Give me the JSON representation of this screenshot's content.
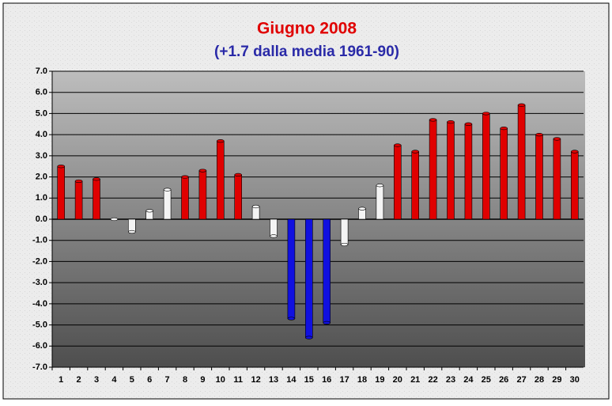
{
  "chart_data": {
    "type": "bar",
    "title": "Giugno 2008",
    "subtitle": "(+1.7 dalla media 1961-90)",
    "categories": [
      "1",
      "2",
      "3",
      "4",
      "5",
      "6",
      "7",
      "8",
      "9",
      "10",
      "11",
      "12",
      "13",
      "14",
      "15",
      "16",
      "17",
      "18",
      "19",
      "20",
      "21",
      "22",
      "23",
      "24",
      "25",
      "26",
      "27",
      "28",
      "29",
      "30"
    ],
    "values": [
      2.5,
      1.8,
      1.9,
      0.0,
      -0.6,
      0.4,
      1.4,
      2.0,
      2.3,
      3.7,
      2.1,
      0.6,
      -0.8,
      -4.7,
      -5.6,
      -4.9,
      -1.2,
      0.5,
      1.6,
      3.5,
      3.2,
      4.7,
      4.6,
      4.5,
      5.0,
      4.3,
      5.4,
      4.0,
      3.8,
      3.2
    ],
    "colors": [
      "#e00000",
      "#e00000",
      "#e00000",
      "#f4f4f4",
      "#f4f4f4",
      "#f4f4f4",
      "#f4f4f4",
      "#e00000",
      "#e00000",
      "#e00000",
      "#e00000",
      "#f4f4f4",
      "#f4f4f4",
      "#1010e0",
      "#1010e0",
      "#1010e0",
      "#f4f4f4",
      "#f4f4f4",
      "#f4f4f4",
      "#e00000",
      "#e00000",
      "#e00000",
      "#e00000",
      "#e00000",
      "#e00000",
      "#e00000",
      "#e00000",
      "#e00000",
      "#e00000",
      "#e00000"
    ],
    "ylim": [
      -7,
      7
    ],
    "yticks": [
      {
        "value": -7,
        "label": "-7.0"
      },
      {
        "value": -6,
        "label": "-6.0"
      },
      {
        "value": -5,
        "label": "-5.0"
      },
      {
        "value": -4,
        "label": "-4.0"
      },
      {
        "value": -3,
        "label": "-3.0"
      },
      {
        "value": -2,
        "label": "-2.0"
      },
      {
        "value": -1,
        "label": "-1.0"
      },
      {
        "value": 0,
        "label": "0.0"
      },
      {
        "value": 1,
        "label": "1.0"
      },
      {
        "value": 2,
        "label": "2.0"
      },
      {
        "value": 3,
        "label": "3.0"
      },
      {
        "value": 4,
        "label": "4.0"
      },
      {
        "value": 5,
        "label": "5.0"
      },
      {
        "value": 6,
        "label": "6.0"
      },
      {
        "value": 7,
        "label": "7.0"
      }
    ],
    "grid": true
  }
}
